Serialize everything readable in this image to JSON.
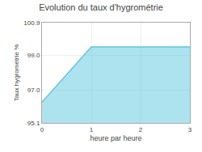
{
  "chart_data": {
    "type": "area",
    "title": "Evolution du taux d'hygrométrie",
    "xlabel": "heure par heure",
    "ylabel": "Taux hygrométrie %",
    "x": [
      0,
      1,
      3
    ],
    "values": [
      96.3,
      99.5,
      99.5
    ],
    "color": "#5bc8e0",
    "xlim": [
      0,
      3
    ],
    "ylim": [
      95.1,
      100.9
    ],
    "xticks": [
      0,
      1,
      2,
      3
    ],
    "yticks": [
      95.1,
      {
        "value": 97.0,
        "label": "97.0"
      },
      {
        "value": 99.0,
        "label": "99.0"
      },
      100.9
    ],
    "grid": true
  }
}
